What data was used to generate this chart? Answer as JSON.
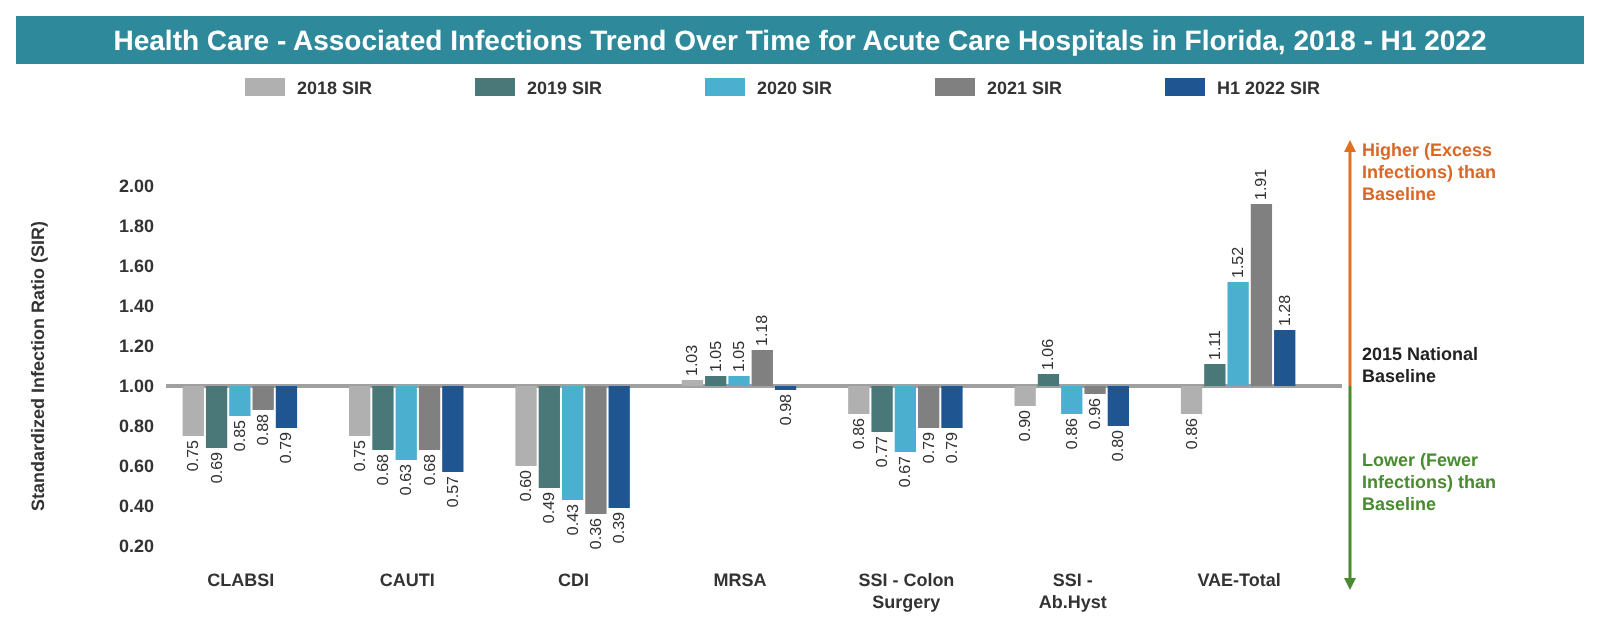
{
  "chart_data": {
    "type": "bar",
    "title": "Health Care - Associated Infections Trend Over Time for Acute Care Hospitals in Florida, 2018 - H1 2022",
    "ylabel": "Standardized Infection Ratio (SIR)",
    "categories": [
      "CLABSI",
      "CAUTI",
      "CDI",
      "MRSA",
      "SSI - Colon Surgery",
      "SSI - Ab.Hyst",
      "VAE-Total"
    ],
    "series": [
      {
        "name": "2018 SIR",
        "color": "#b0b0b0",
        "base": [
          1,
          1,
          1,
          1,
          1,
          1,
          1
        ],
        "values": [
          -0.25,
          -0.25,
          -0.4,
          0.03,
          -0.14,
          -0.1,
          -0.14
        ],
        "value_labels": [
          "0.75",
          "0.75",
          "0.60",
          "1.03",
          "0.86",
          "0.90",
          "0.86"
        ]
      },
      {
        "name": "2019 SIR",
        "color": "#4a7878",
        "base": [
          1,
          1,
          1,
          1,
          1,
          1,
          1
        ],
        "values": [
          -0.31,
          -0.32,
          -0.51,
          0.05,
          -0.23,
          0.06,
          0.11
        ],
        "value_labels": [
          "0.69",
          "0.68",
          "0.49",
          "1.05",
          "0.77",
          "1.06",
          "1.11"
        ]
      },
      {
        "name": "2020 SIR",
        "color": "#4bb0d0",
        "base": [
          1,
          1,
          1,
          1,
          1,
          1,
          1
        ],
        "values": [
          -0.15,
          -0.37,
          -0.57,
          0.05,
          -0.33,
          -0.14,
          0.52
        ],
        "value_labels": [
          "0.85",
          "0.63",
          "0.43",
          "1.05",
          "0.67",
          "0.86",
          "1.52"
        ]
      },
      {
        "name": "2021 SIR",
        "color": "#808080",
        "base": [
          1,
          1,
          1,
          1,
          1,
          1,
          1
        ],
        "values": [
          -0.12,
          -0.32,
          -0.64,
          0.18,
          -0.21,
          -0.04,
          0.91
        ],
        "value_labels": [
          "0.88",
          "0.68",
          "0.36",
          "1.18",
          "0.79",
          "0.96",
          "1.91"
        ]
      },
      {
        "name": "H1 2022 SIR",
        "color": "#1f5590",
        "base": [
          1,
          1,
          1,
          1,
          1,
          1,
          1
        ],
        "values": [
          -0.21,
          -0.43,
          -0.61,
          -0.02,
          -0.21,
          -0.2,
          0.28
        ],
        "value_labels": [
          "0.79",
          "0.57",
          "0.39",
          "0.98",
          "0.79",
          "0.80",
          "1.28"
        ]
      }
    ],
    "ylim": [
      0.2,
      2.0
    ],
    "yticks": [
      {
        "value": 0.2,
        "label": "0.20"
      },
      {
        "value": 0.4,
        "label": "0.40"
      },
      {
        "value": 0.6,
        "label": "0.60"
      },
      {
        "value": 0.8,
        "label": "0.80"
      },
      {
        "value": 1.0,
        "label": "1.00"
      },
      {
        "value": 1.2,
        "label": "1.20"
      },
      {
        "value": 1.4,
        "label": "1.40"
      },
      {
        "value": 1.6,
        "label": "1.60"
      },
      {
        "value": 1.8,
        "label": "1.80"
      },
      {
        "value": 2.0,
        "label": "2.00"
      }
    ],
    "ref_lines": [
      {
        "axis": "y",
        "value": 1.0,
        "label": "2015 National Baseline",
        "color": "#a0a0a0"
      }
    ],
    "annotations": [
      "Higher (Excess Infections) than Baseline",
      "Lower (Fewer Infections) than Baseline"
    ],
    "legend": "top"
  }
}
